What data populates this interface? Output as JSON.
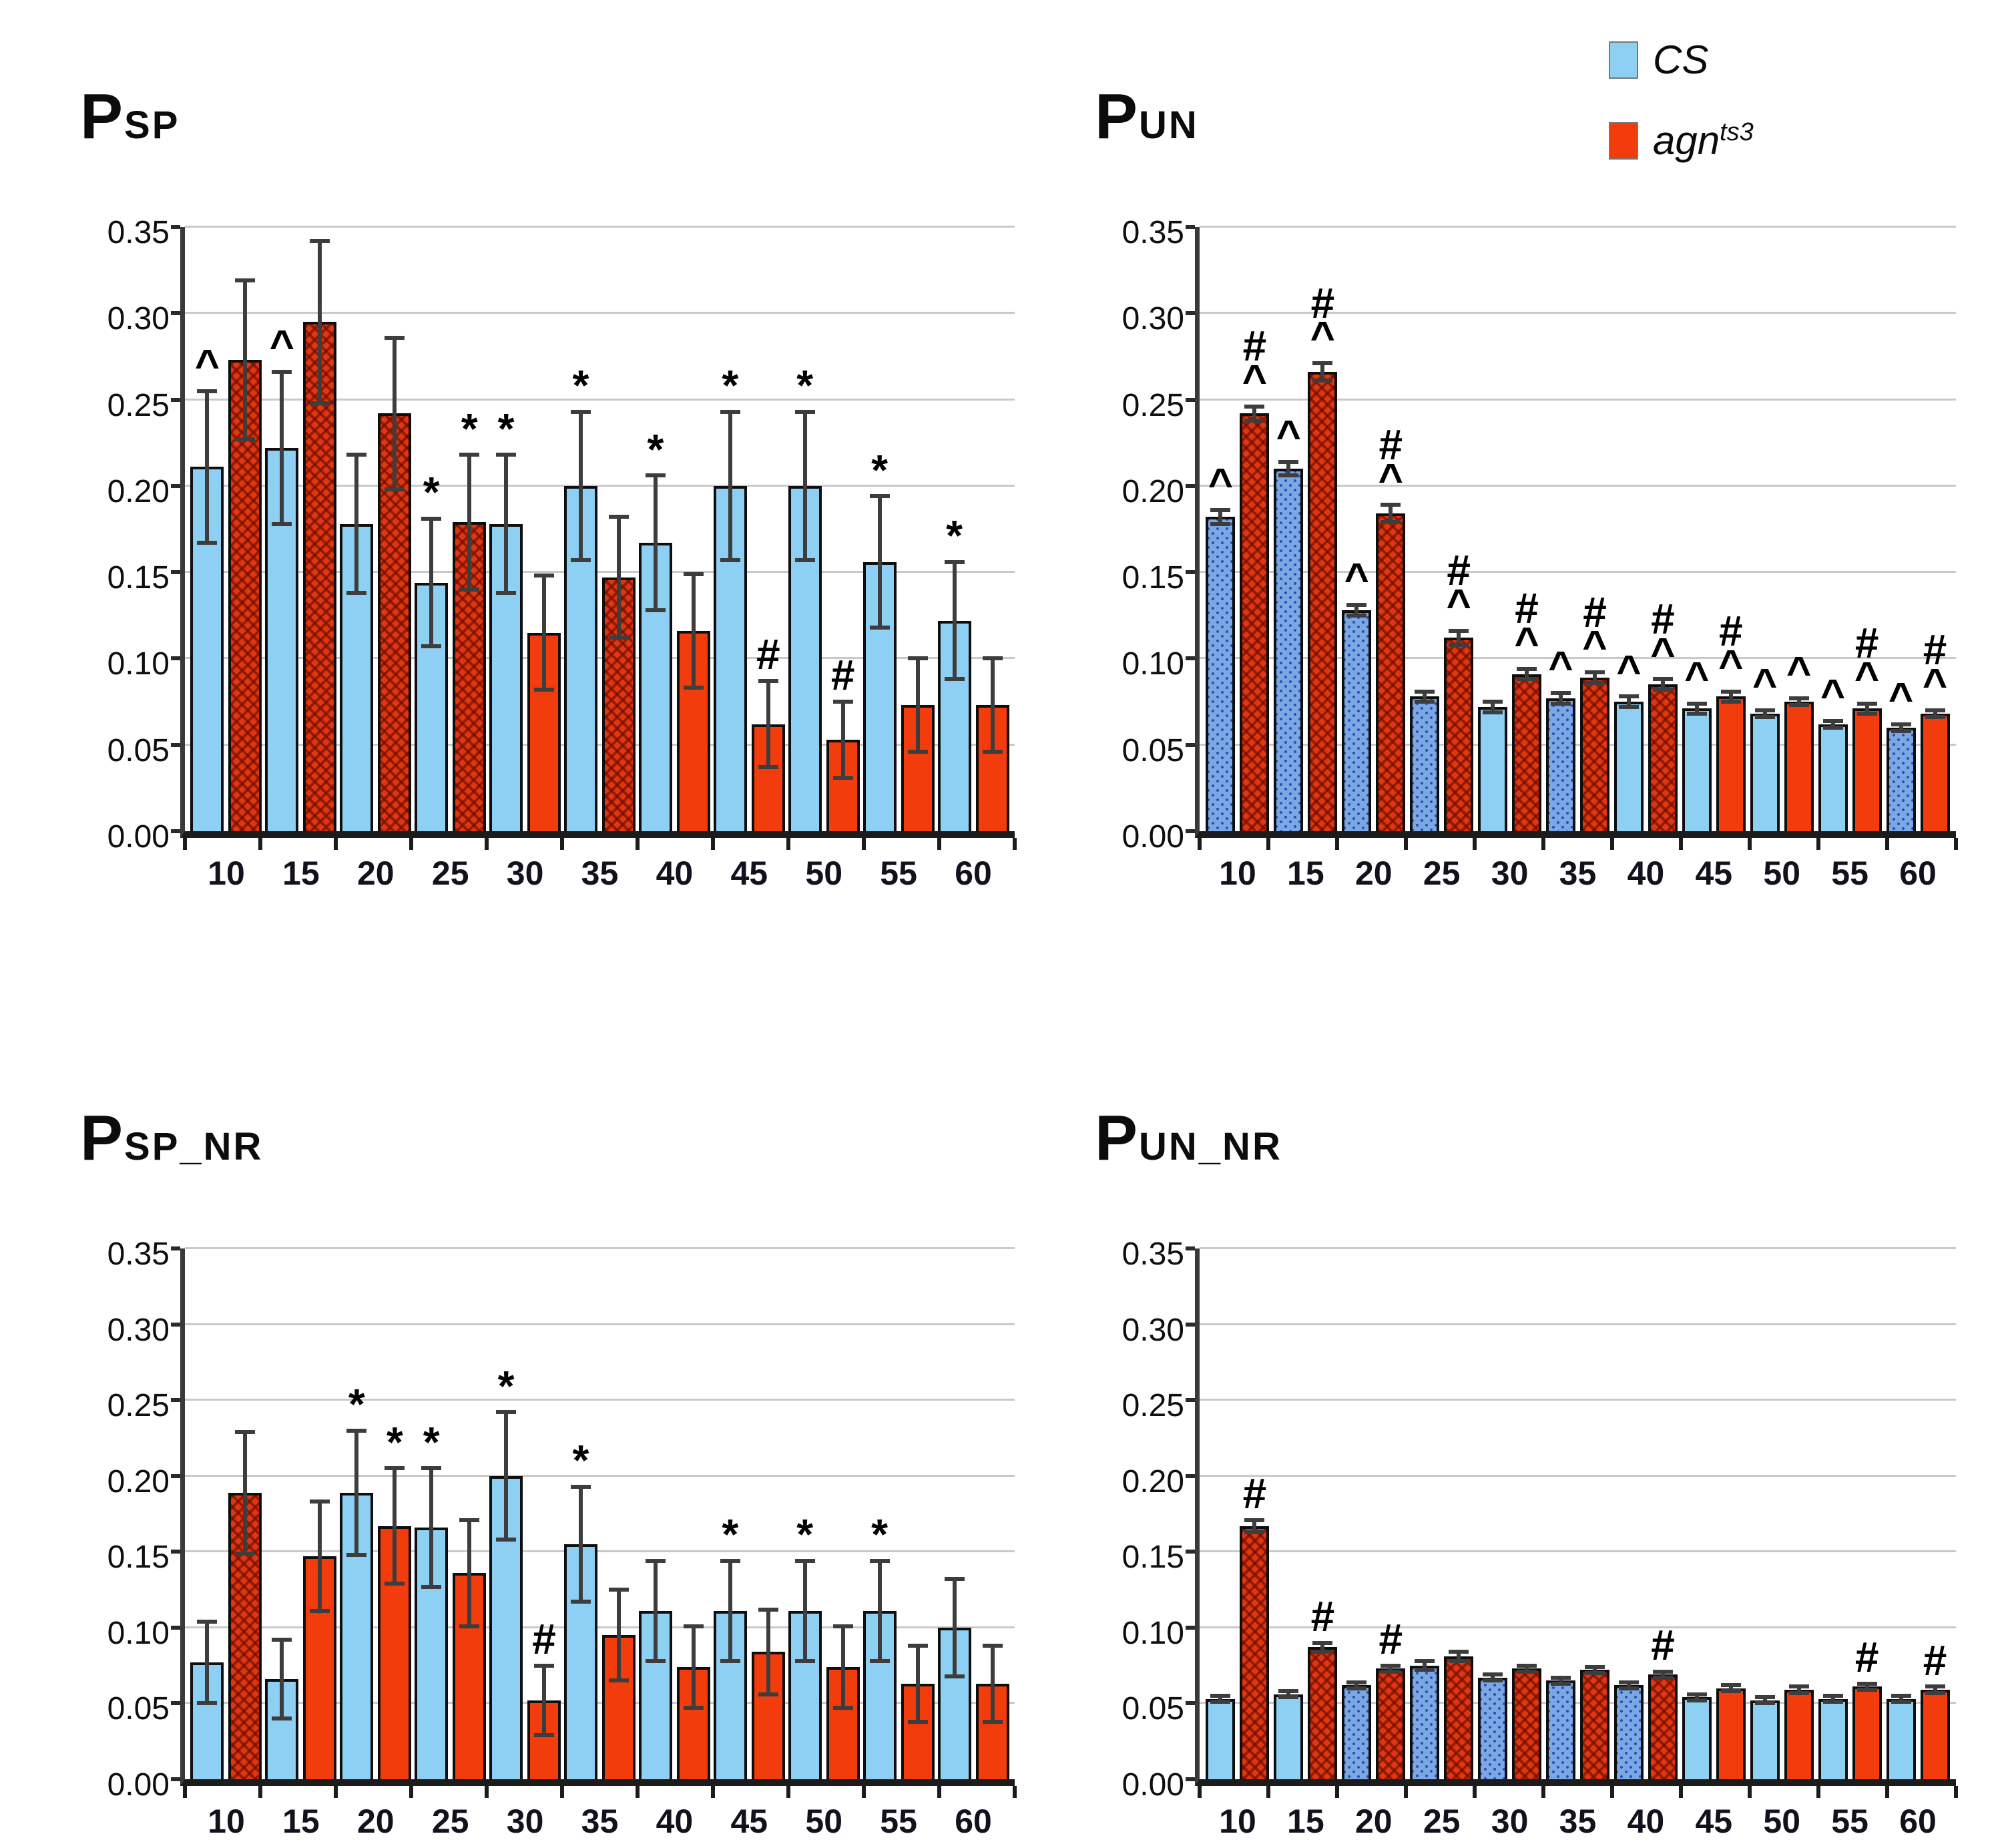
{
  "page": {
    "background": "#ffffff"
  },
  "legend": {
    "items": [
      {
        "label": "CS",
        "sup": "",
        "swatch_color": "#8dd0f3"
      },
      {
        "label": "agn",
        "sup": "ts3",
        "swatch_color": "#f23c0c"
      }
    ]
  },
  "colors": {
    "cs_solid": "#8dd0f3",
    "cs_hatched": "#7ba7e3",
    "cs_hatch_dot": "#2b4fb8",
    "agn_solid": "#f23c0c",
    "agn_hatched": "#e0370e",
    "bar_border": "#0e0e0e",
    "error_bar": "#3d3d3d",
    "gridline": "#c9c9c9",
    "axis": "#1c1c1c",
    "text": "#101010"
  },
  "axis": {
    "y_min": 0,
    "y_max": 0.35,
    "y_step": 0.05,
    "y_tick_labels": [
      "0.00",
      "0.05",
      "0.10",
      "0.15",
      "0.20",
      "0.25",
      "0.30",
      "0.35"
    ],
    "grid": true
  },
  "chart_data": [
    {
      "type": "bar",
      "title_main": "P",
      "title_sub": "SP",
      "ylim": [
        0,
        0.35
      ],
      "categories": [
        "10",
        "15",
        "20",
        "25",
        "30",
        "35",
        "40",
        "45",
        "50",
        "55",
        "60"
      ],
      "series": [
        {
          "name": "CS",
          "values": [
            0.211,
            0.222,
            0.178,
            0.144,
            0.178,
            0.2,
            0.167,
            0.2,
            0.2,
            0.156,
            0.122
          ],
          "errors": [
            0.044,
            0.044,
            0.04,
            0.037,
            0.04,
            0.043,
            0.039,
            0.043,
            0.043,
            0.038,
            0.034
          ],
          "hatched": [
            false,
            false,
            false,
            false,
            false,
            false,
            false,
            false,
            false,
            false,
            false
          ],
          "markers": [
            "^",
            "^",
            "",
            "*",
            "*",
            "*",
            "*",
            "*",
            "*",
            "*",
            "*"
          ]
        },
        {
          "name": "agn ts3",
          "values": [
            0.273,
            0.295,
            0.242,
            0.179,
            0.115,
            0.147,
            0.116,
            0.062,
            0.053,
            0.073,
            0.073
          ],
          "errors": [
            0.046,
            0.047,
            0.044,
            0.039,
            0.033,
            0.035,
            0.033,
            0.025,
            0.022,
            0.027,
            0.027
          ],
          "hatched": [
            true,
            true,
            true,
            true,
            false,
            true,
            false,
            false,
            false,
            false,
            false
          ],
          "markers": [
            "",
            "",
            "",
            "*",
            "",
            "",
            "",
            "#",
            "#",
            "",
            ""
          ]
        }
      ]
    },
    {
      "type": "bar",
      "title_main": "P",
      "title_sub": "UN",
      "ylim": [
        0,
        0.35
      ],
      "categories": [
        "10",
        "15",
        "20",
        "25",
        "30",
        "35",
        "40",
        "45",
        "50",
        "55",
        "60"
      ],
      "series": [
        {
          "name": "CS",
          "values": [
            0.182,
            0.21,
            0.128,
            0.078,
            0.072,
            0.077,
            0.075,
            0.071,
            0.068,
            0.062,
            0.06
          ],
          "errors": [
            0.004,
            0.004,
            0.003,
            0.003,
            0.003,
            0.003,
            0.003,
            0.003,
            0.002,
            0.002,
            0.002
          ],
          "hatched": [
            true,
            true,
            true,
            true,
            false,
            true,
            false,
            false,
            false,
            false,
            true
          ],
          "markers": [
            "^",
            "^",
            "^",
            "",
            "",
            "^",
            "^",
            "^",
            "^",
            "^",
            "^"
          ]
        },
        {
          "name": "agn ts3",
          "values": [
            0.242,
            0.266,
            0.184,
            0.112,
            0.091,
            0.089,
            0.085,
            0.078,
            0.075,
            0.071,
            0.068
          ],
          "errors": [
            0.004,
            0.005,
            0.005,
            0.004,
            0.003,
            0.003,
            0.003,
            0.003,
            0.002,
            0.003,
            0.002
          ],
          "hatched": [
            true,
            true,
            true,
            true,
            true,
            true,
            true,
            false,
            false,
            false,
            false
          ],
          "markers": [
            "#^",
            "#^",
            "#^",
            "#^",
            "#^",
            "#^",
            "#^",
            "#^",
            "^",
            "#^",
            "#^"
          ]
        }
      ]
    },
    {
      "type": "bar",
      "title_main": "P",
      "title_sub": "SP_NR",
      "ylim": [
        0,
        0.35
      ],
      "categories": [
        "10",
        "15",
        "20",
        "25",
        "30",
        "35",
        "40",
        "45",
        "50",
        "55",
        "60"
      ],
      "series": [
        {
          "name": "CS",
          "values": [
            0.077,
            0.066,
            0.189,
            0.166,
            0.2,
            0.155,
            0.111,
            0.111,
            0.111,
            0.111,
            0.1
          ],
          "errors": [
            0.027,
            0.026,
            0.041,
            0.039,
            0.042,
            0.038,
            0.033,
            0.033,
            0.033,
            0.033,
            0.032
          ],
          "hatched": [
            false,
            false,
            false,
            false,
            false,
            false,
            false,
            false,
            false,
            false,
            false
          ],
          "markers": [
            "",
            "",
            "*",
            "*",
            "*",
            "*",
            "",
            "*",
            "*",
            "*",
            ""
          ]
        },
        {
          "name": "agn ts3",
          "values": [
            0.189,
            0.147,
            0.167,
            0.136,
            0.052,
            0.095,
            0.074,
            0.084,
            0.074,
            0.063,
            0.063
          ],
          "errors": [
            0.04,
            0.036,
            0.038,
            0.035,
            0.023,
            0.03,
            0.027,
            0.028,
            0.027,
            0.025,
            0.025
          ],
          "hatched": [
            true,
            false,
            false,
            false,
            false,
            false,
            false,
            false,
            false,
            false,
            false
          ],
          "markers": [
            "",
            "",
            "*",
            "",
            "#",
            "",
            "",
            "",
            "",
            "",
            ""
          ]
        }
      ]
    },
    {
      "type": "bar",
      "title_main": "P",
      "title_sub": "UN_NR",
      "ylim": [
        0,
        0.35
      ],
      "categories": [
        "10",
        "15",
        "20",
        "25",
        "30",
        "35",
        "40",
        "45",
        "50",
        "55",
        "60"
      ],
      "series": [
        {
          "name": "CS",
          "values": [
            0.053,
            0.056,
            0.062,
            0.075,
            0.067,
            0.065,
            0.062,
            0.054,
            0.052,
            0.053,
            0.053
          ],
          "errors": [
            0.002,
            0.002,
            0.002,
            0.003,
            0.002,
            0.002,
            0.002,
            0.002,
            0.002,
            0.002,
            0.002
          ],
          "hatched": [
            false,
            false,
            true,
            true,
            true,
            true,
            true,
            false,
            false,
            false,
            false
          ],
          "markers": [
            "",
            "",
            "",
            "",
            "",
            "",
            "",
            "",
            "",
            "",
            ""
          ]
        },
        {
          "name": "agn ts3",
          "values": [
            0.167,
            0.087,
            0.073,
            0.081,
            0.073,
            0.072,
            0.069,
            0.06,
            0.059,
            0.061,
            0.059
          ],
          "errors": [
            0.004,
            0.003,
            0.002,
            0.003,
            0.002,
            0.002,
            0.002,
            0.002,
            0.002,
            0.002,
            0.002
          ],
          "hatched": [
            true,
            true,
            true,
            true,
            true,
            true,
            true,
            false,
            false,
            false,
            false
          ],
          "markers": [
            "#",
            "#",
            "#",
            "",
            "",
            "",
            "#",
            "",
            "",
            "#",
            "#"
          ]
        }
      ]
    }
  ]
}
